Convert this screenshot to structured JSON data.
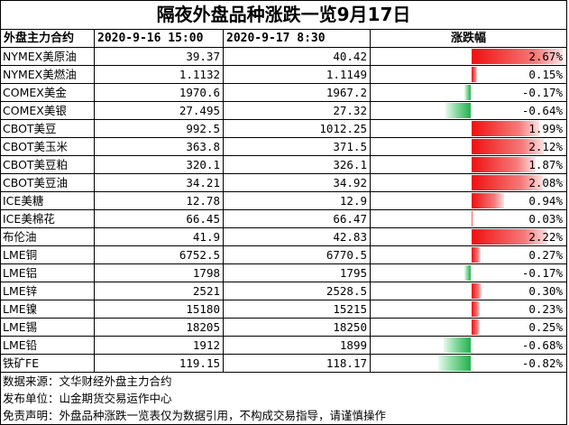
{
  "title": "隔夜外盘品种涨跌一览9月17日",
  "header": {
    "contract": "外盘主力合约",
    "prev_time": "2020-9-16 15:00",
    "curr_time": "2020-9-17 8:30",
    "change": "涨跌幅"
  },
  "colors": {
    "up": "#ef1010",
    "down": "#22b14c"
  },
  "rows": [
    {
      "name": "NYMEX美原油",
      "prev": "39.37",
      "curr": "40.42",
      "pct": "2.67%",
      "value": 2.67
    },
    {
      "name": "NYMEX美燃油",
      "prev": "1.1132",
      "curr": "1.1149",
      "pct": "0.15%",
      "value": 0.15
    },
    {
      "name": "COMEX美金",
      "prev": "1970.6",
      "curr": "1967.2",
      "pct": "-0.17%",
      "value": -0.17
    },
    {
      "name": "COMEX美银",
      "prev": "27.495",
      "curr": "27.32",
      "pct": "-0.64%",
      "value": -0.64
    },
    {
      "name": "CBOT美豆",
      "prev": "992.5",
      "curr": "1012.25",
      "pct": "1.99%",
      "value": 1.99
    },
    {
      "name": "CBOT美玉米",
      "prev": "363.8",
      "curr": "371.5",
      "pct": "2.12%",
      "value": 2.12
    },
    {
      "name": "CBOT美豆粕",
      "prev": "320.1",
      "curr": "326.1",
      "pct": "1.87%",
      "value": 1.87
    },
    {
      "name": "CBOT美豆油",
      "prev": "34.21",
      "curr": "34.92",
      "pct": "2.08%",
      "value": 2.08
    },
    {
      "name": "ICE美糖",
      "prev": "12.78",
      "curr": "12.9",
      "pct": "0.94%",
      "value": 0.94
    },
    {
      "name": "ICE美棉花",
      "prev": "66.45",
      "curr": "66.47",
      "pct": "0.03%",
      "value": 0.03
    },
    {
      "name": "布伦油",
      "prev": "41.9",
      "curr": "42.83",
      "pct": "2.22%",
      "value": 2.22
    },
    {
      "name": "LME铜",
      "prev": "6752.5",
      "curr": "6770.5",
      "pct": "0.27%",
      "value": 0.27
    },
    {
      "name": "LME铝",
      "prev": "1798",
      "curr": "1795",
      "pct": "-0.17%",
      "value": -0.17
    },
    {
      "name": "LME锌",
      "prev": "2521",
      "curr": "2528.5",
      "pct": "0.30%",
      "value": 0.3
    },
    {
      "name": "LME镍",
      "prev": "15180",
      "curr": "15215",
      "pct": "0.23%",
      "value": 0.23
    },
    {
      "name": "LME锡",
      "prev": "18205",
      "curr": "18250",
      "pct": "0.25%",
      "value": 0.25
    },
    {
      "name": "LME铅",
      "prev": "1912",
      "curr": "1899",
      "pct": "-0.68%",
      "value": -0.68
    },
    {
      "name": "铁矿FE",
      "prev": "119.15",
      "curr": "118.17",
      "pct": "-0.82%",
      "value": -0.82
    }
  ],
  "notes": [
    "数据来源：文华财经外盘主力合约",
    "发布单位：山金期货交易运作中心",
    "免责声明：外盘品种涨跌一览表仅为数据引用，不构成交易指导，请谨慎操作"
  ]
}
